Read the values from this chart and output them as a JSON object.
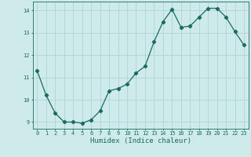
{
  "xlabel": "Humidex (Indice chaleur)",
  "x": [
    0,
    1,
    2,
    3,
    4,
    5,
    6,
    7,
    8,
    9,
    10,
    11,
    12,
    13,
    14,
    15,
    16,
    17,
    18,
    19,
    20,
    21,
    22,
    23
  ],
  "y": [
    11.3,
    10.2,
    9.4,
    9.0,
    9.0,
    8.95,
    9.1,
    9.5,
    10.4,
    10.5,
    10.7,
    11.2,
    11.5,
    12.6,
    13.5,
    14.05,
    13.25,
    13.3,
    13.7,
    14.1,
    14.1,
    13.7,
    13.05,
    12.45
  ],
  "line_color": "#1a6b5e",
  "marker": "D",
  "marker_size": 2.2,
  "bg_color": "#ceeaea",
  "grid_color": "#aed4d4",
  "tick_label_color": "#1a6b5e",
  "axis_label_color": "#1a6b5e",
  "ylim": [
    8.7,
    14.4
  ],
  "xlim": [
    -0.5,
    23.5
  ],
  "yticks": [
    9,
    10,
    11,
    12,
    13,
    14
  ],
  "xticks": [
    0,
    1,
    2,
    3,
    4,
    5,
    6,
    7,
    8,
    9,
    10,
    11,
    12,
    13,
    14,
    15,
    16,
    17,
    18,
    19,
    20,
    21,
    22,
    23
  ],
  "tick_fontsize": 5.0,
  "xlabel_fontsize": 6.5
}
